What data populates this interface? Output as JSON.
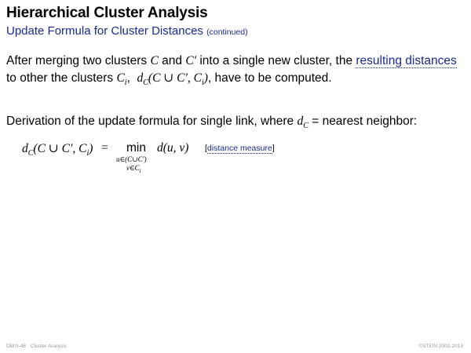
{
  "header": {
    "title": "Hierarchical Cluster Analysis",
    "subtitle": "Update Formula for Cluster Distances",
    "subtitle_note": "(continued)"
  },
  "paragraph1": {
    "text_a": "After merging two clusters ",
    "var_c": "C",
    "text_and": " and ",
    "var_c_prime": "C′",
    "text_b": " into a single new cluster, the ",
    "link_text": "resulting distances",
    "text_c": " to other the clusters ",
    "var_ci": "C",
    "var_ci_sub": "i",
    "expr": "d(C ∪ C′, C",
    "expr_sub_c": "C",
    "expr_end": ")",
    "text_d": ",  have to be computed."
  },
  "paragraph2": {
    "text_a": "Derivation of the update formula for single link, where ",
    "var_d": "d",
    "var_d_sub": "C",
    "text_b": " = nearest neighbor:"
  },
  "formula": {
    "lhs_d": "d",
    "lhs_sub": "C",
    "lhs_args": "(C ∪ C′, C",
    "lhs_args_sub": "i",
    "lhs_close": ")",
    "equals": "=",
    "min": "min",
    "sub_line1": "u∈(C∪C′)",
    "sub_line2_v": "v∈C",
    "sub_line2_i": "i",
    "rhs": "d(u, v)",
    "ref_open": "[",
    "ref_link": "distance measure",
    "ref_close": "]"
  },
  "footer": {
    "page": "DM:II-48",
    "section": "Cluster Analysis",
    "copyright": "©STEIN 2002-2018"
  }
}
